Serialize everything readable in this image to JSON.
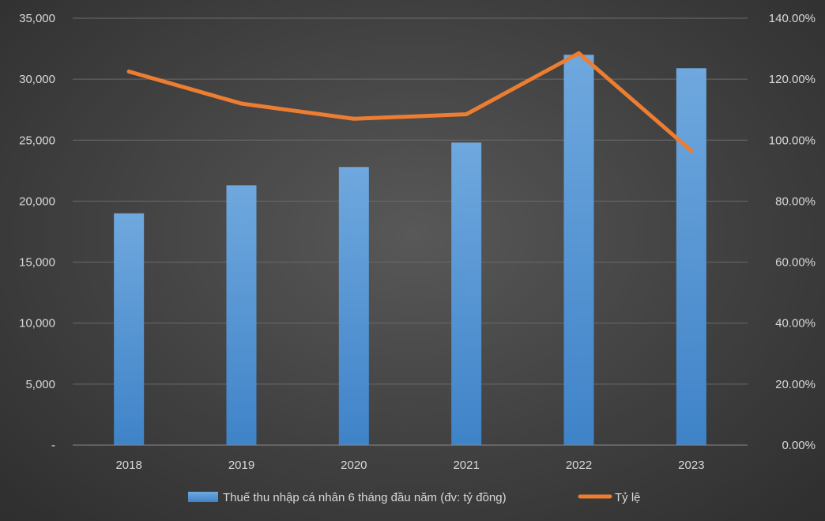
{
  "chart_data": {
    "type": "bar",
    "title": "",
    "categories": [
      "2018",
      "2019",
      "2020",
      "2021",
      "2022",
      "2023"
    ],
    "series": [
      {
        "name": "Thuế thu nhập cá nhân 6 tháng đầu năm (đv: tỷ đồng)",
        "type": "bar",
        "axis": "left",
        "values": [
          19000,
          21300,
          22800,
          24800,
          32000,
          30900
        ]
      },
      {
        "name": "Tỷ lệ",
        "type": "line",
        "axis": "right",
        "values": [
          1.225,
          1.12,
          1.07,
          1.085,
          1.285,
          0.965
        ]
      }
    ],
    "y_left": {
      "min": 0,
      "max": 35000,
      "step": 5000,
      "tick_labels": [
        "-",
        "5,000",
        "10,000",
        "15,000",
        "20,000",
        "25,000",
        "30,000",
        "35,000"
      ]
    },
    "y_right": {
      "min": 0,
      "max": 1.4,
      "step": 0.2,
      "tick_labels": [
        "0.00%",
        "20.00%",
        "40.00%",
        "60.00%",
        "80.00%",
        "100.00%",
        "120.00%",
        "140.00%"
      ]
    },
    "grid": true,
    "legend_position": "bottom",
    "colors": {
      "bar": "#5b9bd5",
      "line": "#ed7d31",
      "grid": "#6a6a6a",
      "text": "#d9d9d9"
    }
  }
}
